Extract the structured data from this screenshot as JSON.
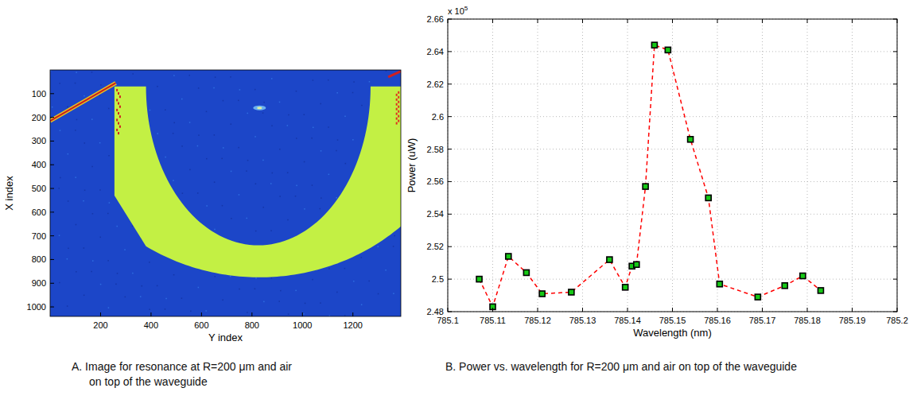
{
  "chart_data": [
    {
      "type": "image",
      "xlabel": "Y index",
      "ylabel": "X index",
      "xlim": [
        0,
        1390
      ],
      "xticks": [
        200,
        400,
        600,
        800,
        1000,
        1200
      ],
      "ylim": [
        1040,
        0
      ],
      "yticks": [
        100,
        200,
        300,
        400,
        500,
        600,
        700,
        800,
        900,
        1000
      ],
      "caption": "A. Image for resonance at R=200 μm and air on top of the waveguide"
    },
    {
      "type": "line",
      "xlabel": "Wavelength (nm)",
      "ylabel": "Power (uW)",
      "annotations": [
        {
          "text": "x 10",
          "exponent": "5"
        }
      ],
      "xlim": [
        785.1,
        785.2
      ],
      "xticks": [
        785.1,
        785.11,
        785.12,
        785.13,
        785.14,
        785.15,
        785.16,
        785.17,
        785.18,
        785.19,
        785.2
      ],
      "ylim": [
        2.48,
        2.66
      ],
      "yticks": [
        2.48,
        2.5,
        2.52,
        2.54,
        2.56,
        2.58,
        2.6,
        2.62,
        2.64,
        2.66
      ],
      "grid": true,
      "x": [
        785.107,
        785.11,
        785.1135,
        785.1175,
        785.121,
        785.1275,
        785.136,
        785.1395,
        785.141,
        785.142,
        785.144,
        785.146,
        785.149,
        785.154,
        785.158,
        785.1605,
        785.169,
        785.175,
        785.179,
        785.183
      ],
      "series": [
        {
          "color": "#ff0000",
          "line_style": "dashed",
          "marker": "square",
          "values": [
            2.5,
            2.483,
            2.514,
            2.504,
            2.491,
            2.492,
            2.512,
            2.495,
            2.508,
            2.509,
            2.557,
            2.644,
            2.641,
            2.586,
            2.55,
            2.497,
            2.489,
            2.496,
            2.502,
            2.493
          ]
        }
      ],
      "caption": "B. Power vs. wavelength for R=200 μm and air on top of the waveguide"
    }
  ]
}
